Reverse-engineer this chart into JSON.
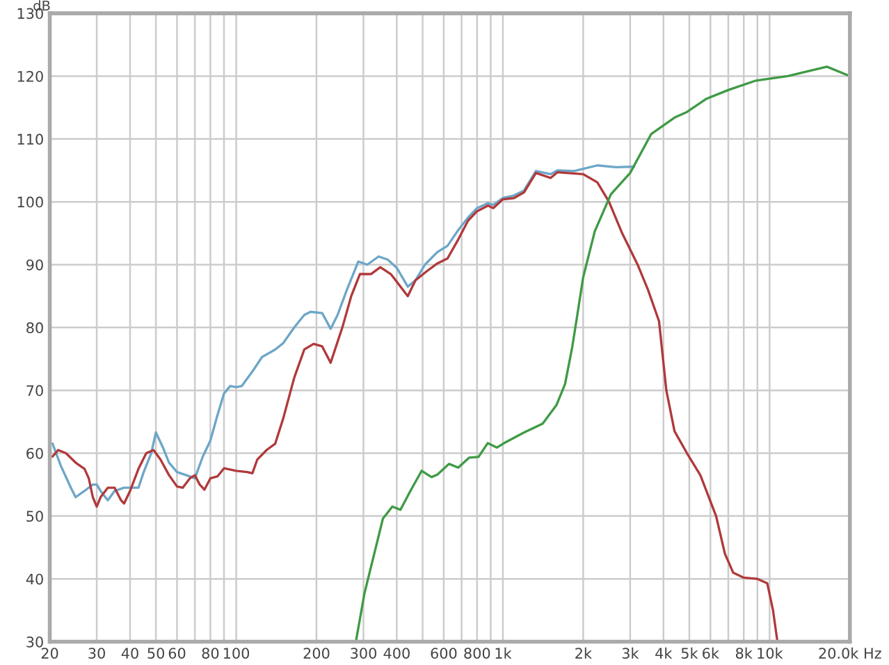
{
  "chart_data": {
    "type": "line",
    "ylabel": "dB",
    "log": "x",
    "grid": true,
    "marker": "none",
    "line_style": "solid",
    "xlim": [
      20,
      20000
    ],
    "ylim": [
      30,
      130
    ],
    "xticks": [
      20,
      30,
      40,
      50,
      60,
      {
        "value": 70,
        "label": null
      },
      80,
      {
        "value": 90,
        "label": null
      },
      100,
      200,
      300,
      400,
      {
        "value": 500,
        "label": null
      },
      600,
      {
        "value": 700,
        "label": null
      },
      800,
      {
        "value": 900,
        "label": null
      },
      {
        "value": 1000,
        "label": "1k"
      },
      {
        "value": 2000,
        "label": "2k"
      },
      {
        "value": 3000,
        "label": "3k"
      },
      {
        "value": 4000,
        "label": "4k"
      },
      {
        "value": 5000,
        "label": "5k"
      },
      {
        "value": 6000,
        "label": "6k"
      },
      {
        "value": 7000,
        "label": null
      },
      {
        "value": 8000,
        "label": "8k"
      },
      {
        "value": 9000,
        "label": null
      },
      {
        "value": 10000,
        "label": "10k"
      },
      {
        "value": 20000,
        "label": "20.0k Hz"
      }
    ],
    "yticks": [
      30,
      40,
      50,
      60,
      70,
      80,
      90,
      100,
      110,
      120,
      130
    ],
    "series": [
      {
        "color": "#6ca6c8",
        "x": [
          20.5,
          22,
          24,
          25,
          27,
          29,
          30,
          31,
          33,
          35,
          38,
          40,
          43,
          45,
          48,
          50,
          53,
          56,
          60,
          65,
          70,
          75,
          80,
          85,
          90,
          95,
          100,
          105,
          115,
          125,
          140,
          150,
          165,
          180,
          190,
          210,
          226,
          240,
          260,
          287,
          310,
          342,
          370,
          400,
          440,
          470,
          510,
          568,
          620,
          680,
          740,
          800,
          880,
          920,
          1000,
          1100,
          1200,
          1330,
          1510,
          1600,
          1850,
          2260,
          2660,
          3100
        ],
        "values": [
          61.5,
          58,
          54.5,
          53,
          54,
          55,
          55,
          54,
          52.5,
          54,
          54.5,
          54.5,
          54.5,
          57,
          60,
          63.3,
          61,
          58.5,
          57,
          56.5,
          56,
          59.5,
          62,
          66,
          69.5,
          70.7,
          70.5,
          70.7,
          73,
          75.3,
          76.5,
          77.5,
          80,
          82,
          82.5,
          82.3,
          79.8,
          82,
          86,
          90.5,
          90,
          91.3,
          90.8,
          89.5,
          86.5,
          87.5,
          90,
          92,
          93,
          95.5,
          97.5,
          99,
          99.8,
          99.5,
          100.6,
          101,
          101.8,
          104.9,
          104.4,
          105,
          104.9,
          105.8,
          105.5,
          105.6
        ]
      },
      {
        "color": "#b0393b",
        "x": [
          20.5,
          21.5,
          23,
          25,
          27,
          28,
          29,
          30,
          31,
          33,
          35,
          37,
          38,
          40,
          43,
          46,
          49,
          52,
          56,
          60,
          63,
          67,
          70,
          73,
          76,
          80,
          85,
          90,
          100,
          110,
          115,
          120,
          130,
          140,
          150,
          165,
          180,
          195,
          210,
          226,
          250,
          270,
          291,
          320,
          347,
          380,
          440,
          470,
          520,
          568,
          620,
          680,
          740,
          800,
          880,
          920,
          1000,
          1100,
          1200,
          1330,
          1510,
          1600,
          2000,
          2260,
          2500,
          2800,
          3200,
          3500,
          3850,
          4100,
          4400,
          4900,
          5500,
          6300,
          6800,
          7300,
          8000,
          9000,
          9800,
          10300,
          10700
        ],
        "values": [
          59.5,
          60.5,
          60,
          58.5,
          57.5,
          56,
          53,
          51.5,
          53,
          54.5,
          54.5,
          52.5,
          52,
          54,
          57.5,
          60,
          60.5,
          59,
          56.5,
          54.7,
          54.5,
          56,
          56.5,
          55,
          54.2,
          56,
          56.3,
          57.6,
          57.2,
          57,
          56.8,
          59,
          60.5,
          61.5,
          65.5,
          72,
          76.5,
          77.4,
          77,
          74.4,
          80,
          85,
          88.5,
          88.5,
          89.6,
          88.5,
          85,
          87.5,
          89,
          90.2,
          91,
          94,
          97,
          98.5,
          99.4,
          99,
          100.4,
          100.6,
          101.5,
          104.6,
          103.8,
          104.7,
          104.4,
          103.1,
          100,
          95,
          90,
          86,
          81,
          70,
          63.5,
          60,
          56.5,
          50,
          44,
          41,
          40.2,
          40,
          39.3,
          35,
          30
        ]
      },
      {
        "color": "#3f9a45",
        "x": [
          281,
          303,
          355,
          385,
          413,
          450,
          496,
          540,
          568,
          628,
          680,
          748,
          810,
          877,
          950,
          1010,
          1200,
          1410,
          1590,
          1710,
          1820,
          1890,
          2000,
          2210,
          2540,
          3000,
          3600,
          4400,
          4900,
          5800,
          7000,
          8900,
          11700,
          16400,
          20000
        ],
        "values": [
          30,
          37.8,
          49.6,
          51.5,
          51,
          54,
          57.2,
          56.2,
          56.6,
          58.3,
          57.7,
          59.3,
          59.4,
          61.6,
          60.9,
          61.6,
          63.3,
          64.7,
          67.7,
          71,
          76.9,
          81.3,
          88,
          95.3,
          101.2,
          104.6,
          110.8,
          113.4,
          114.3,
          116.4,
          117.8,
          119.3,
          120,
          121.5,
          120
        ]
      }
    ]
  }
}
